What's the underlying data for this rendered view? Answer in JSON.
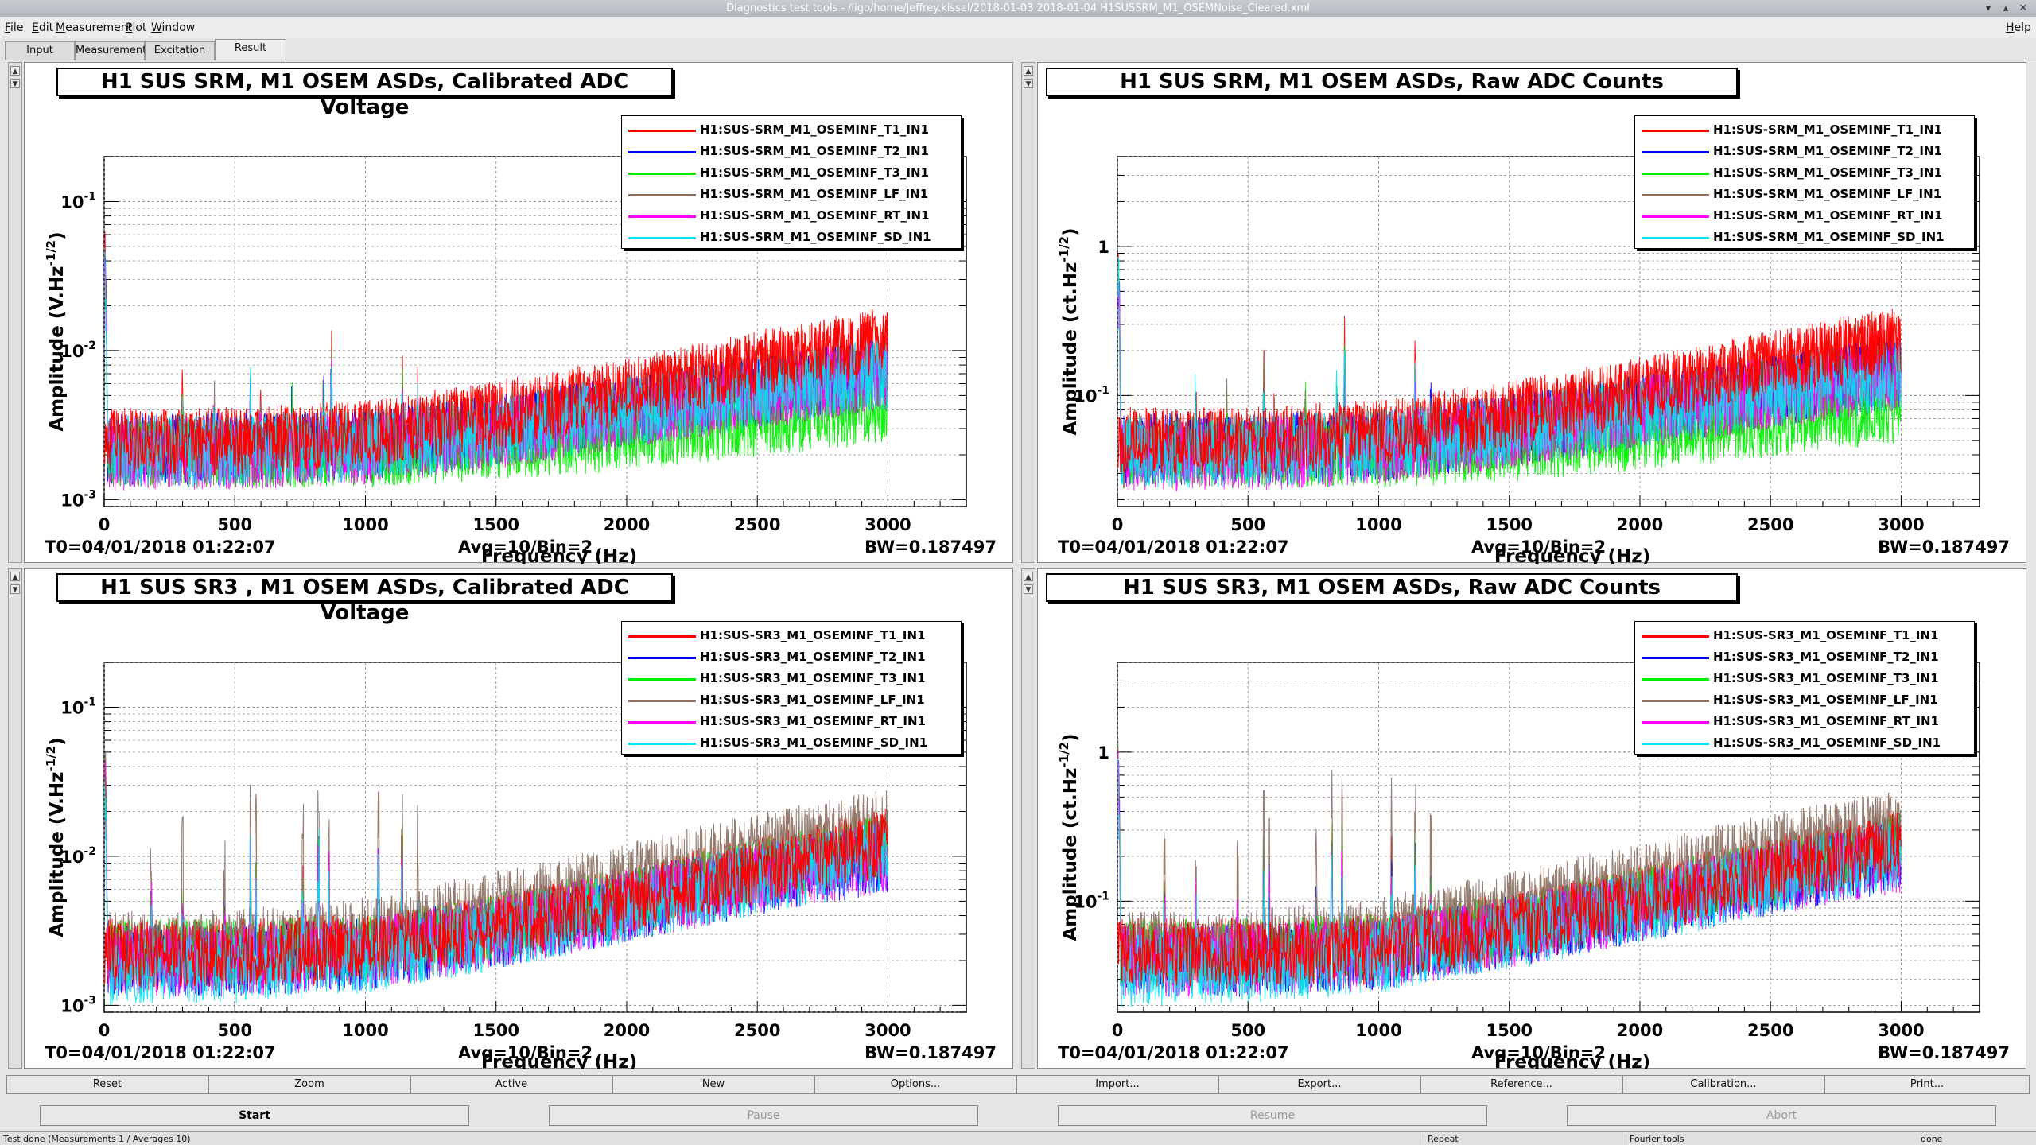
{
  "window": {
    "title": "Diagnostics test tools - /ligo/home/jeffrey.kissel/2018-01-03 2018-01-04 H1SUSSRM_M1_OSEMNoise_Cleared.xml"
  },
  "menu": [
    "File",
    "Edit",
    "Measurement",
    "Plot",
    "Window"
  ],
  "menu_help": "Help",
  "tabs": [
    {
      "label": "Input"
    },
    {
      "label": "Measurement"
    },
    {
      "label": "Excitation"
    },
    {
      "label": "Result"
    }
  ],
  "panels": [
    {
      "title": "H1 SUS SRM, M1 OSEM ASDs, Calibrated ADC Voltage",
      "t0": "T0=04/01/2018 01:22:07",
      "avg": "Avg=10/Bin=2",
      "bw": "BW=0.187497",
      "ylabel_base": "Amplitude (V.Hz",
      "ylabel_exp": "-1/2",
      "ylabel_end": ")",
      "xlabel": "Frequency (Hz)"
    },
    {
      "title": "H1 SUS SRM, M1 OSEM ASDs, Raw ADC Counts",
      "t0": "T0=04/01/2018 01:22:07",
      "avg": "Avg=10/Bin=2",
      "bw": "BW=0.187497",
      "ylabel_base": "Amplitude (ct.Hz",
      "ylabel_exp": "-1/2",
      "ylabel_end": ")",
      "xlabel": "Frequency (Hz)"
    },
    {
      "title": "H1 SUS SR3 , M1 OSEM ASDs, Calibrated ADC Voltage",
      "t0": "T0=04/01/2018 01:22:07",
      "avg": "Avg=10/Bin=2",
      "bw": "BW=0.187497",
      "ylabel_base": "Amplitude (V.Hz",
      "ylabel_exp": "-1/2",
      "ylabel_end": ")",
      "xlabel": "Frequency (Hz)"
    },
    {
      "title": "H1 SUS SR3, M1 OSEM ASDs, Raw ADC Counts",
      "t0": "T0=04/01/2018 01:22:07",
      "avg": "Avg=10/Bin=2",
      "bw": "BW=0.187497",
      "ylabel_base": "Amplitude (ct.Hz",
      "ylabel_exp": "-1/2",
      "ylabel_end": ")",
      "xlabel": "Frequency (Hz)"
    }
  ],
  "chart_data": [
    {
      "type": "line",
      "title": "H1 SUS SRM, M1 OSEM ASDs, Calibrated ADC Voltage",
      "xlabel": "Frequency (Hz)",
      "ylabel": "Amplitude (V.Hz^-1/2)",
      "xlim": [
        0,
        3300
      ],
      "ylim": [
        0.0009,
        0.2
      ],
      "ylog": true,
      "grid": true,
      "legend": "top-right",
      "xticks": [
        0,
        500,
        1000,
        1500,
        2000,
        2500,
        3000
      ],
      "yticks": [
        0.001,
        0.01,
        0.1
      ],
      "x": [
        0,
        500,
        1000,
        1500,
        2000,
        2500,
        3000
      ],
      "series": [
        {
          "name": "H1:SUS-SRM_M1_OSEMINF_T1_IN1",
          "color": "#ff0000",
          "values": [
            0.0024,
            0.0024,
            0.0027,
            0.0036,
            0.0052,
            0.0078,
            0.0115
          ]
        },
        {
          "name": "H1:SUS-SRM_M1_OSEMINF_T2_IN1",
          "color": "#0000ff",
          "values": [
            0.0022,
            0.0022,
            0.0023,
            0.0029,
            0.0039,
            0.0053,
            0.007
          ]
        },
        {
          "name": "H1:SUS-SRM_M1_OSEMINF_T3_IN1",
          "color": "#00ee00",
          "values": [
            0.0021,
            0.002,
            0.002,
            0.0022,
            0.0026,
            0.0032,
            0.004
          ]
        },
        {
          "name": "H1:SUS-SRM_M1_OSEMINF_LF_IN1",
          "color": "#8b6e5f",
          "values": [
            0.0021,
            0.0021,
            0.0023,
            0.0029,
            0.0039,
            0.0053,
            0.007
          ]
        },
        {
          "name": "H1:SUS-SRM_M1_OSEMINF_RT_IN1",
          "color": "#ff00ff",
          "values": [
            0.002,
            0.002,
            0.0022,
            0.0028,
            0.0038,
            0.0052,
            0.0069
          ]
        },
        {
          "name": "H1:SUS-SRM_M1_OSEMINF_SD_IN1",
          "color": "#00e5ee",
          "values": [
            0.0021,
            0.0021,
            0.0023,
            0.0029,
            0.0039,
            0.0053,
            0.007
          ]
        }
      ]
    },
    {
      "type": "line",
      "title": "H1 SUS SRM, M1 OSEM ASDs, Raw ADC Counts",
      "xlabel": "Frequency (Hz)",
      "ylabel": "Amplitude (ct.Hz^-1/2)",
      "xlim": [
        0,
        3300
      ],
      "ylim": [
        0.018,
        4
      ],
      "ylog": true,
      "grid": true,
      "legend": "top-right",
      "xticks": [
        0,
        500,
        1000,
        1500,
        2000,
        2500,
        3000
      ],
      "yticks": [
        0.1,
        1
      ],
      "x": [
        0,
        500,
        1000,
        1500,
        2000,
        2500,
        3000
      ],
      "series": [
        {
          "name": "H1:SUS-SRM_M1_OSEMINF_T1_IN1",
          "color": "#ff0000",
          "values": [
            0.048,
            0.048,
            0.054,
            0.072,
            0.104,
            0.156,
            0.23
          ]
        },
        {
          "name": "H1:SUS-SRM_M1_OSEMINF_T2_IN1",
          "color": "#0000ff",
          "values": [
            0.044,
            0.044,
            0.046,
            0.058,
            0.078,
            0.106,
            0.14
          ]
        },
        {
          "name": "H1:SUS-SRM_M1_OSEMINF_T3_IN1",
          "color": "#00ee00",
          "values": [
            0.042,
            0.04,
            0.04,
            0.044,
            0.052,
            0.064,
            0.08
          ]
        },
        {
          "name": "H1:SUS-SRM_M1_OSEMINF_LF_IN1",
          "color": "#8b6e5f",
          "values": [
            0.042,
            0.042,
            0.046,
            0.058,
            0.078,
            0.106,
            0.14
          ]
        },
        {
          "name": "H1:SUS-SRM_M1_OSEMINF_RT_IN1",
          "color": "#ff00ff",
          "values": [
            0.04,
            0.04,
            0.044,
            0.056,
            0.076,
            0.104,
            0.138
          ]
        },
        {
          "name": "H1:SUS-SRM_M1_OSEMINF_SD_IN1",
          "color": "#00e5ee",
          "values": [
            0.042,
            0.042,
            0.046,
            0.058,
            0.078,
            0.106,
            0.14
          ]
        }
      ]
    },
    {
      "type": "line",
      "title": "H1 SUS SR3 , M1 OSEM ASDs, Calibrated ADC Voltage",
      "xlabel": "Frequency (Hz)",
      "ylabel": "Amplitude (V.Hz^-1/2)",
      "xlim": [
        0,
        3300
      ],
      "ylim": [
        0.0009,
        0.2
      ],
      "ylog": true,
      "grid": true,
      "legend": "top-right",
      "xticks": [
        0,
        500,
        1000,
        1500,
        2000,
        2500,
        3000
      ],
      "yticks": [
        0.001,
        0.01,
        0.1
      ],
      "x": [
        0,
        500,
        1000,
        1500,
        2000,
        2500,
        3000
      ],
      "series": [
        {
          "name": "H1:SUS-SR3_M1_OSEMINF_T1_IN1",
          "color": "#ff0000",
          "values": [
            0.0022,
            0.0022,
            0.0024,
            0.0033,
            0.005,
            0.0078,
            0.012
          ]
        },
        {
          "name": "H1:SUS-SR3_M1_OSEMINF_T2_IN1",
          "color": "#0000ff",
          "values": [
            0.002,
            0.002,
            0.0022,
            0.0031,
            0.0046,
            0.007,
            0.01
          ]
        },
        {
          "name": "H1:SUS-SR3_M1_OSEMINF_T3_IN1",
          "color": "#00ee00",
          "values": [
            0.0023,
            0.0023,
            0.0025,
            0.0034,
            0.0051,
            0.0078,
            0.0118
          ]
        },
        {
          "name": "H1:SUS-SR3_M1_OSEMINF_LF_IN1",
          "color": "#8b6e5f",
          "values": [
            0.0024,
            0.0025,
            0.003,
            0.0045,
            0.007,
            0.011,
            0.016
          ]
        },
        {
          "name": "H1:SUS-SR3_M1_OSEMINF_RT_IN1",
          "color": "#ff00ff",
          "values": [
            0.002,
            0.002,
            0.0022,
            0.0031,
            0.0046,
            0.007,
            0.01
          ]
        },
        {
          "name": "H1:SUS-SR3_M1_OSEMINF_SD_IN1",
          "color": "#00e5ee",
          "values": [
            0.0017,
            0.0018,
            0.0021,
            0.003,
            0.0045,
            0.007,
            0.0105
          ]
        }
      ]
    },
    {
      "type": "line",
      "title": "H1 SUS SR3, M1 OSEM ASDs, Raw ADC Counts",
      "xlabel": "Frequency (Hz)",
      "ylabel": "Amplitude (ct.Hz^-1/2)",
      "xlim": [
        0,
        3300
      ],
      "ylim": [
        0.018,
        4
      ],
      "ylog": true,
      "grid": true,
      "legend": "top-right",
      "xticks": [
        0,
        500,
        1000,
        1500,
        2000,
        2500,
        3000
      ],
      "yticks": [
        0.1,
        1
      ],
      "x": [
        0,
        500,
        1000,
        1500,
        2000,
        2500,
        3000
      ],
      "series": [
        {
          "name": "H1:SUS-SR3_M1_OSEMINF_T1_IN1",
          "color": "#ff0000",
          "values": [
            0.044,
            0.044,
            0.048,
            0.066,
            0.1,
            0.156,
            0.24
          ]
        },
        {
          "name": "H1:SUS-SR3_M1_OSEMINF_T2_IN1",
          "color": "#0000ff",
          "values": [
            0.04,
            0.04,
            0.044,
            0.062,
            0.092,
            0.14,
            0.2
          ]
        },
        {
          "name": "H1:SUS-SR3_M1_OSEMINF_T3_IN1",
          "color": "#00ee00",
          "values": [
            0.046,
            0.046,
            0.05,
            0.068,
            0.102,
            0.156,
            0.236
          ]
        },
        {
          "name": "H1:SUS-SR3_M1_OSEMINF_LF_IN1",
          "color": "#8b6e5f",
          "values": [
            0.048,
            0.05,
            0.06,
            0.09,
            0.14,
            0.22,
            0.32
          ]
        },
        {
          "name": "H1:SUS-SR3_M1_OSEMINF_RT_IN1",
          "color": "#ff00ff",
          "values": [
            0.04,
            0.04,
            0.044,
            0.062,
            0.092,
            0.14,
            0.2
          ]
        },
        {
          "name": "H1:SUS-SR3_M1_OSEMINF_SD_IN1",
          "color": "#00e5ee",
          "values": [
            0.034,
            0.036,
            0.042,
            0.06,
            0.09,
            0.14,
            0.21
          ]
        }
      ]
    }
  ],
  "buttons": [
    "Reset",
    "Zoom",
    "Active",
    "New",
    "Options...",
    "Import...",
    "Export...",
    "Reference...",
    "Calibration...",
    "Print..."
  ],
  "run_buttons": [
    "Start",
    "Pause",
    "Resume",
    "Abort"
  ],
  "status": {
    "main": "Test done (Measurements 1 / Averages 10)",
    "repeat": "Repeat",
    "tool": "Fourier tools",
    "state": "done"
  }
}
